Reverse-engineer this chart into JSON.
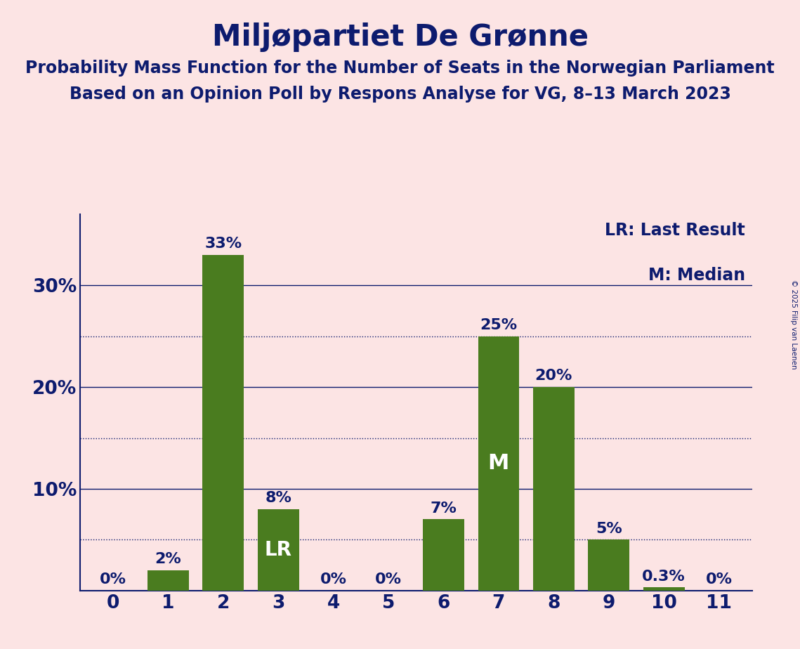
{
  "title": "Miljøpartiet De Grønne",
  "subtitle1": "Probability Mass Function for the Number of Seats in the Norwegian Parliament",
  "subtitle2": "Based on an Opinion Poll by Respons Analyse for VG, 8–13 March 2023",
  "copyright": "© 2025 Filip van Laenen",
  "categories": [
    0,
    1,
    2,
    3,
    4,
    5,
    6,
    7,
    8,
    9,
    10,
    11
  ],
  "values": [
    0.0,
    0.02,
    0.33,
    0.08,
    0.0,
    0.0,
    0.07,
    0.25,
    0.2,
    0.05,
    0.003,
    0.0
  ],
  "labels": [
    "0%",
    "2%",
    "33%",
    "8%",
    "0%",
    "0%",
    "7%",
    "25%",
    "20%",
    "5%",
    "0.3%",
    "0%"
  ],
  "bar_color": "#4a7c1f",
  "background_color": "#fce4e4",
  "text_color": "#0d1b6e",
  "title_fontsize": 30,
  "subtitle_fontsize": 17,
  "label_fontsize": 16,
  "axis_fontsize": 19,
  "ytick_values": [
    0,
    0.1,
    0.2,
    0.3
  ],
  "ylim": [
    0,
    0.37
  ],
  "lr_bar": 3,
  "median_bar": 7,
  "legend_lr": "LR: Last Result",
  "legend_m": "M: Median",
  "grid_lines": [
    0.05,
    0.1,
    0.15,
    0.2,
    0.25,
    0.3
  ],
  "grid_styles": [
    "dotted",
    "solid",
    "dotted",
    "solid",
    "dotted",
    "solid"
  ]
}
